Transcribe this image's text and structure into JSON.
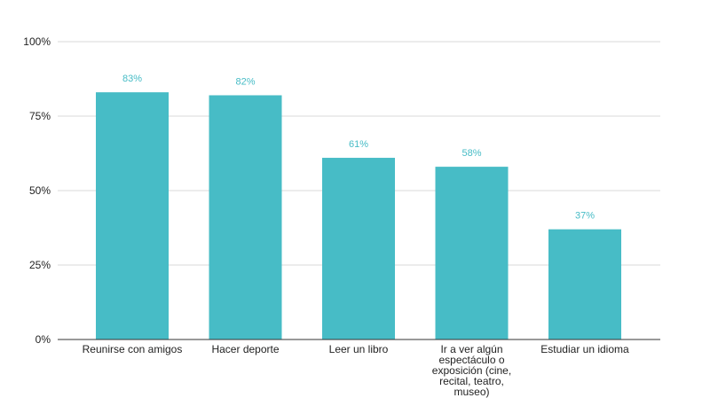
{
  "chart_data": {
    "type": "bar",
    "categories": [
      "Reunirse con amigos",
      "Hacer deporte",
      "Leer un libro",
      "Ir a ver algún espectáculo o exposición (cine, recital, teatro, museo)",
      "Estudiar un idioma"
    ],
    "category_lines": [
      [
        "Reunirse con amigos"
      ],
      [
        "Hacer deporte"
      ],
      [
        "Leer un libro"
      ],
      [
        "Ir a ver algún",
        "espectáculo o",
        "exposición (cine,",
        "recital, teatro,",
        "museo)"
      ],
      [
        "Estudiar un idioma"
      ]
    ],
    "values": [
      83,
      82,
      61,
      58,
      37
    ],
    "data_labels": [
      "83%",
      "82%",
      "61%",
      "58%",
      "37%"
    ],
    "title": "",
    "xlabel": "",
    "ylabel": "",
    "ylim": [
      0,
      100
    ],
    "yticks": [
      0,
      25,
      50,
      75,
      100
    ],
    "ytick_labels": [
      "0%",
      "25%",
      "50%",
      "75%",
      "100%"
    ],
    "grid": true,
    "legend": "none",
    "colors": {
      "bar": "#47bcc6",
      "data_label": "#47bcc6",
      "grid": "#d9d9d9",
      "axis": "#333333"
    }
  }
}
